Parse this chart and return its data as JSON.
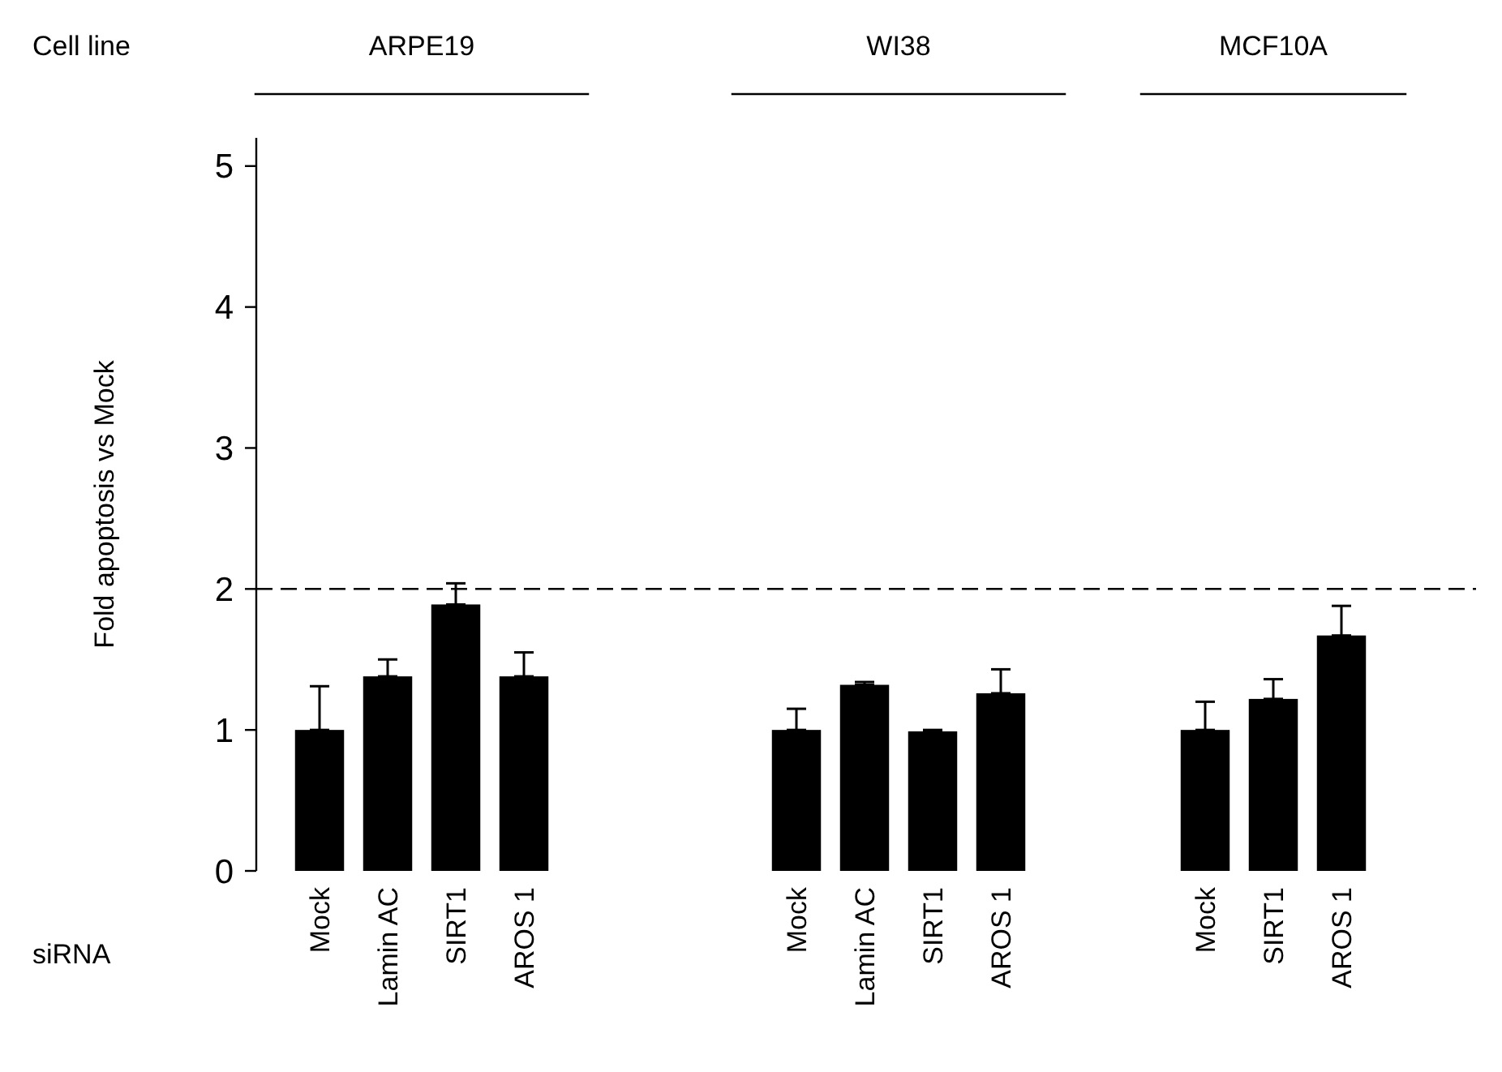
{
  "chart_data": {
    "type": "bar",
    "ylabel": "Fold apoptosis vs Mock",
    "categories": [
      "Mock",
      "Lamin AC",
      "SIRT1",
      "AROS 1",
      null,
      null,
      null,
      "Mock",
      "Lamin AC",
      "SIRT1",
      "AROS 1",
      null,
      null,
      "Mock",
      "SIRT1",
      "AROS 1"
    ],
    "values": [
      1.0,
      1.38,
      1.89,
      1.38,
      null,
      null,
      null,
      1.0,
      1.32,
      0.99,
      1.26,
      null,
      null,
      1.0,
      1.22,
      1.67
    ],
    "errors": [
      [
        1.0,
        1.31
      ],
      [
        1.38,
        1.5
      ],
      [
        1.89,
        2.04
      ],
      [
        1.38,
        1.55
      ],
      null,
      null,
      null,
      [
        1.0,
        1.15
      ],
      [
        1.32,
        1.34
      ],
      [
        0.99,
        1.0
      ],
      [
        1.26,
        1.43
      ],
      null,
      null,
      [
        1.0,
        1.2
      ],
      [
        1.22,
        1.36
      ],
      [
        1.67,
        1.88
      ]
    ],
    "color": "#000000",
    "ylim": [
      0,
      5.2
    ],
    "yticks": [
      0,
      1,
      2,
      3,
      4,
      5
    ],
    "ref_lines": [
      {
        "axis": "y",
        "value": 2,
        "line_style": "dashed",
        "color": "#000000"
      }
    ],
    "annotations": [
      "Cell line",
      "siRNA",
      "ARPE19",
      "WI38",
      "MCF10A"
    ],
    "grid": false
  }
}
